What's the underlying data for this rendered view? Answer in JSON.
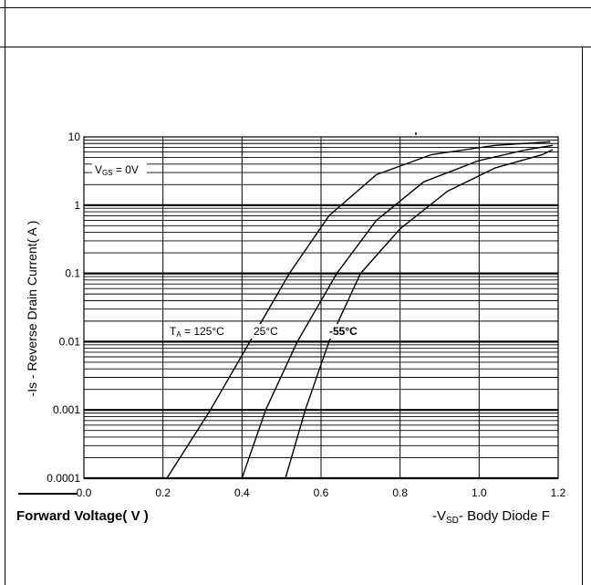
{
  "chart_data": {
    "type": "line",
    "title": "",
    "ylabel": "-Is - Reverse Drain Current( A )",
    "xlabel_left": "Forward Voltage( V )",
    "xlabel_right": "-V",
    "xlabel_right_sub": "SD",
    "xlabel_right_tail": "- Body Diode F",
    "y_scale": "log",
    "ylim": [
      0.0001,
      10
    ],
    "xlim": [
      0,
      1.2
    ],
    "y_tick_labels": [
      "10",
      "1",
      "0.1",
      "0.01",
      "0.001",
      "0.0001"
    ],
    "y_tick_values": [
      10,
      1,
      0.1,
      0.01,
      0.001,
      0.0001
    ],
    "x_tick_labels": [
      "0.0",
      "0.2",
      "0.4",
      "0.6",
      "0.8",
      "1.0",
      "1.2"
    ],
    "x_tick_values": [
      0.0,
      0.2,
      0.4,
      0.6,
      0.8,
      1.0,
      1.2
    ],
    "grid": true,
    "annotation_vgs_main": "V",
    "annotation_vgs_sub": "GS",
    "annotation_vgs_tail": " = 0V",
    "annotation_ta_main": "T",
    "annotation_ta_sub": "A",
    "annotation_ta_tail": " = 125°C",
    "series": [
      {
        "name": "125°C",
        "x": [
          0.21,
          0.32,
          0.42,
          0.52,
          0.62,
          0.74,
          0.88,
          1.04,
          1.18
        ],
        "y": [
          0.0001,
          0.001,
          0.01,
          0.1,
          0.7,
          2.8,
          5.5,
          7.5,
          8.5
        ]
      },
      {
        "name": "25°C",
        "x": [
          0.4,
          0.46,
          0.54,
          0.64,
          0.74,
          0.86,
          1.0,
          1.12,
          1.2
        ],
        "y": [
          0.0001,
          0.001,
          0.01,
          0.1,
          0.6,
          2.2,
          4.5,
          6.5,
          7.5
        ]
      },
      {
        "name": "-55°C",
        "x": [
          0.51,
          0.56,
          0.62,
          0.7,
          0.8,
          0.92,
          1.04,
          1.16,
          1.23
        ],
        "y": [
          0.0001,
          0.001,
          0.01,
          0.1,
          0.45,
          1.6,
          3.5,
          5.5,
          6.5
        ]
      }
    ],
    "series_colors": [
      "#000000",
      "#000000",
      "#000000"
    ]
  }
}
